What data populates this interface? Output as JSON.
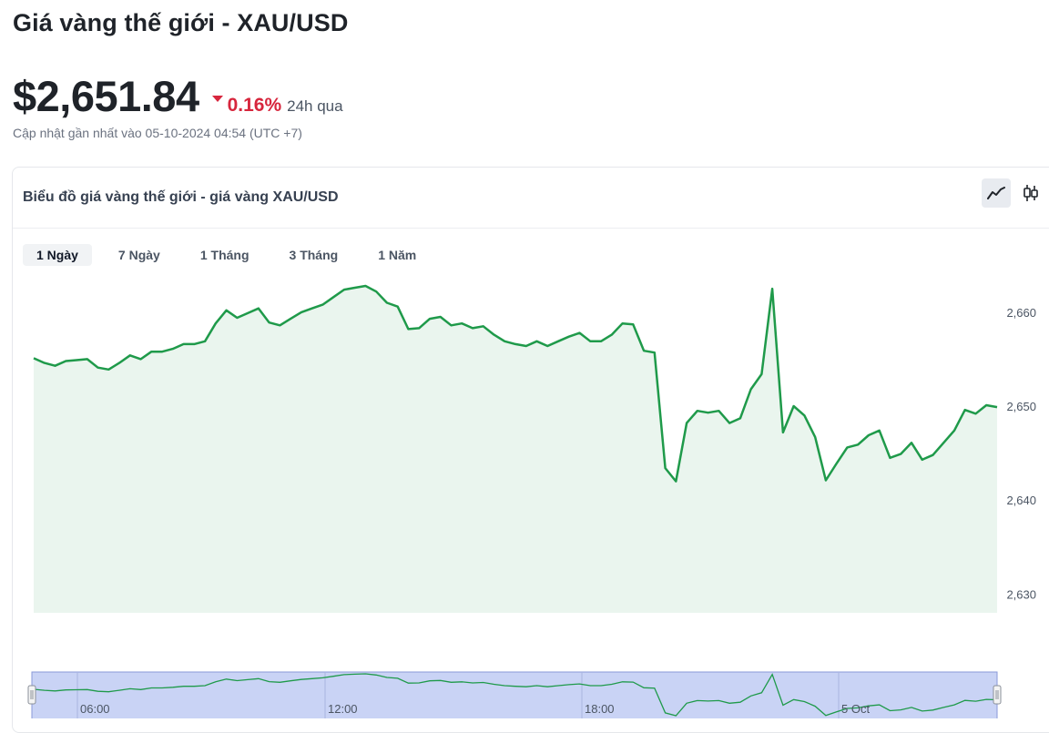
{
  "page": {
    "title": "Giá vàng thế giới - XAU/USD",
    "price": "$2,651.84",
    "change_pct": "0.16%",
    "change_period": "24h qua",
    "updated": "Cập nhật gần nhất vào 05-10-2024 04:54 (UTC +7)"
  },
  "card": {
    "title": "Biểu đồ giá vàng thế giới - giá vàng XAU/USD",
    "chart_types": [
      {
        "icon": "line-chart-icon",
        "active": true
      },
      {
        "icon": "candlestick-chart-icon",
        "active": false
      }
    ],
    "ranges": [
      {
        "label": "1 Ngày",
        "active": true
      },
      {
        "label": "7 Ngày",
        "active": false
      },
      {
        "label": "1 Tháng",
        "active": false
      },
      {
        "label": "3 Tháng",
        "active": false
      },
      {
        "label": "1 Năm",
        "active": false
      }
    ]
  },
  "colors": {
    "line": "#1f9a4a",
    "area": "#eaf5ee",
    "down": "#d7263d",
    "navigator_fill": "#c9d3f5",
    "navigator_line": "#1f9a4a"
  },
  "chart_data": {
    "type": "area",
    "ylim": [
      2628,
      2669
    ],
    "y_ticks": [
      2630,
      2640,
      2650,
      2660
    ],
    "y_tick_labels": [
      "2,630",
      "2,640",
      "2,650",
      "2,660"
    ],
    "navigator_labels": [
      "06:00",
      "12:00",
      "18:00",
      "5 Oct"
    ],
    "series": [
      {
        "values": [
          2655.1,
          2654.6,
          2654.3,
          2654.8,
          2654.9,
          2655.0,
          2654.1,
          2653.9,
          2654.6,
          2655.4,
          2655.0,
          2655.8,
          2655.8,
          2656.1,
          2656.6,
          2656.6,
          2656.9,
          2658.8,
          2660.2,
          2659.4,
          2659.9,
          2660.4,
          2658.9,
          2658.6,
          2659.3,
          2660.0,
          2660.4,
          2660.8,
          2661.6,
          2662.4,
          2662.6,
          2662.8,
          2662.2,
          2661.0,
          2660.6,
          2658.2,
          2658.3,
          2659.3,
          2659.5,
          2658.6,
          2658.8,
          2658.3,
          2658.5,
          2657.6,
          2656.9,
          2656.6,
          2656.4,
          2656.9,
          2656.4,
          2656.9,
          2657.4,
          2657.8,
          2656.9,
          2656.9,
          2657.6,
          2658.8,
          2658.7,
          2655.9,
          2655.7,
          2643.4,
          2642.0,
          2648.2,
          2649.5,
          2649.3,
          2649.5,
          2648.2,
          2648.7,
          2651.8,
          2653.4,
          2662.5,
          2647.2,
          2650.0,
          2649.0,
          2646.7,
          2642.1,
          2643.9,
          2645.6,
          2645.9,
          2646.9,
          2647.4,
          2644.5,
          2644.9,
          2646.1,
          2644.3,
          2644.8,
          2646.1,
          2647.4,
          2649.6,
          2649.2,
          2650.1,
          2649.9
        ]
      }
    ]
  }
}
